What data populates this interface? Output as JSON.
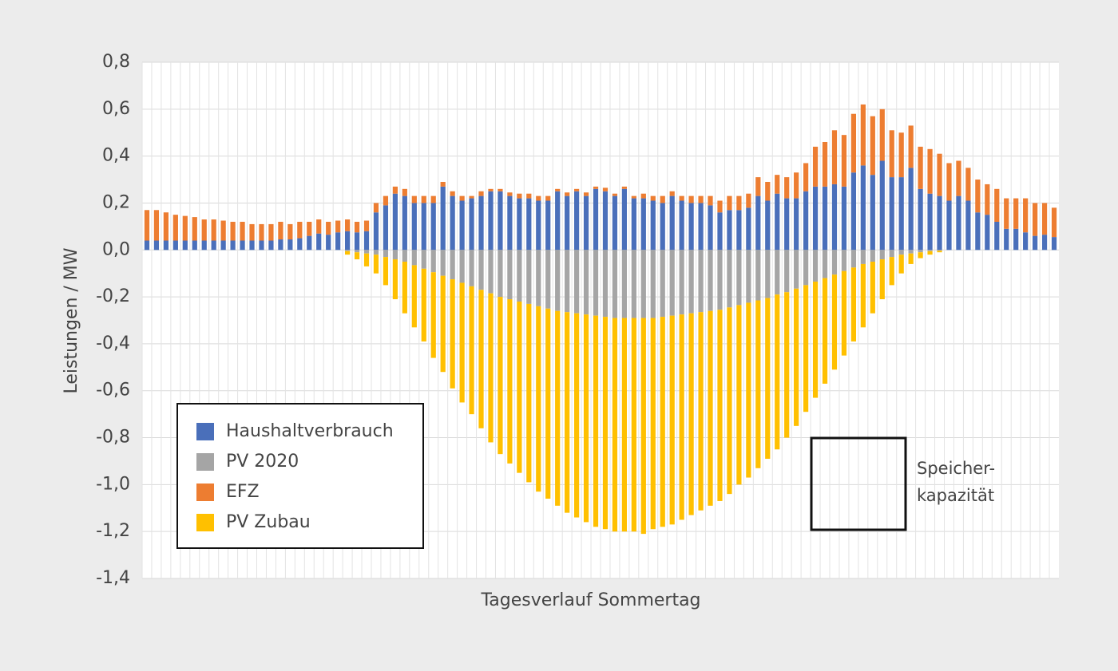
{
  "chart_data": {
    "type": "stacked_bar",
    "y_label": "Leistungen / MW",
    "x_label": "Tagesverlauf Sommertag",
    "annotation": [
      "Speicher-",
      "kapazität"
    ],
    "legend_position": "lower left",
    "grid": true,
    "ylim": [
      -1.4,
      0.8
    ],
    "yticks": [
      {
        "value": -1.4,
        "label": "-1,4"
      },
      {
        "value": -1.2,
        "label": "-1,2"
      },
      {
        "value": -1.0,
        "label": "-1,0"
      },
      {
        "value": -0.8,
        "label": "-0,8"
      },
      {
        "value": -0.6,
        "label": "-0,6"
      },
      {
        "value": -0.4,
        "label": "-0,4"
      },
      {
        "value": -0.2,
        "label": "-0,2"
      },
      {
        "value": 0,
        "label": "0,0"
      },
      {
        "value": 0.2,
        "label": "0,2"
      },
      {
        "value": 0.4,
        "label": "0,4"
      },
      {
        "value": 0.6,
        "label": "0,6"
      },
      {
        "value": 0.8,
        "label": "0,8"
      }
    ],
    "categories": [
      null,
      null,
      null,
      null,
      null,
      null,
      null,
      null,
      null,
      null,
      null,
      null,
      null,
      null,
      null,
      null,
      null,
      null,
      null,
      null,
      null,
      null,
      null,
      null,
      null,
      null,
      null,
      null,
      null,
      null,
      null,
      null,
      null,
      null,
      null,
      null,
      null,
      null,
      null,
      null,
      null,
      null,
      null,
      null,
      null,
      null,
      null,
      null,
      null,
      null,
      null,
      null,
      null,
      null,
      null,
      null,
      null,
      null,
      null,
      null,
      null,
      null,
      null,
      null,
      null,
      null,
      null,
      null,
      null,
      null,
      null,
      null,
      null,
      null,
      null,
      null,
      null,
      null,
      null,
      null,
      null,
      null,
      null,
      null,
      null,
      null,
      null,
      null,
      null,
      null,
      null,
      null,
      null,
      null,
      null,
      null
    ],
    "series": [
      {
        "name": "Haushaltverbrauch",
        "color": "#4a6fba",
        "values": [
          0.04,
          0.04,
          0.04,
          0.04,
          0.04,
          0.04,
          0.04,
          0.04,
          0.04,
          0.04,
          0.04,
          0.04,
          0.04,
          0.04,
          0.045,
          0.045,
          0.05,
          0.06,
          0.07,
          0.065,
          0.075,
          0.08,
          0.075,
          0.08,
          0.16,
          0.19,
          0.24,
          0.23,
          0.2,
          0.2,
          0.2,
          0.27,
          0.23,
          0.21,
          0.22,
          0.23,
          0.25,
          0.25,
          0.23,
          0.22,
          0.22,
          0.21,
          0.21,
          0.25,
          0.23,
          0.25,
          0.23,
          0.26,
          0.25,
          0.23,
          0.26,
          0.22,
          0.22,
          0.21,
          0.2,
          0.23,
          0.21,
          0.2,
          0.2,
          0.19,
          0.16,
          0.17,
          0.17,
          0.18,
          0.23,
          0.21,
          0.24,
          0.22,
          0.22,
          0.25,
          0.27,
          0.27,
          0.28,
          0.27,
          0.33,
          0.36,
          0.32,
          0.38,
          0.31,
          0.31,
          0.35,
          0.26,
          0.24,
          0.23,
          0.21,
          0.23,
          0.21,
          0.16,
          0.15,
          0.12,
          0.09,
          0.09,
          0.075,
          0.06,
          0.065,
          0.055
        ]
      },
      {
        "name": "PV 2020",
        "color": "#a5a5a5",
        "values": [
          0,
          0,
          0,
          0,
          0,
          0,
          0,
          0,
          0,
          0,
          0,
          0,
          0,
          0,
          0,
          0,
          0,
          0,
          0,
          0,
          0,
          -0.005,
          -0.01,
          -0.015,
          -0.02,
          -0.03,
          -0.04,
          -0.05,
          -0.065,
          -0.08,
          -0.095,
          -0.11,
          -0.125,
          -0.14,
          -0.155,
          -0.17,
          -0.185,
          -0.2,
          -0.21,
          -0.22,
          -0.23,
          -0.24,
          -0.25,
          -0.26,
          -0.265,
          -0.27,
          -0.275,
          -0.28,
          -0.285,
          -0.29,
          -0.29,
          -0.29,
          -0.29,
          -0.29,
          -0.285,
          -0.28,
          -0.275,
          -0.27,
          -0.265,
          -0.26,
          -0.255,
          -0.245,
          -0.235,
          -0.225,
          -0.215,
          -0.205,
          -0.19,
          -0.18,
          -0.165,
          -0.15,
          -0.135,
          -0.12,
          -0.105,
          -0.09,
          -0.075,
          -0.06,
          -0.05,
          -0.04,
          -0.03,
          -0.02,
          -0.015,
          -0.01,
          -0.005,
          -0.003,
          0,
          0,
          0,
          0,
          0,
          0,
          0,
          0,
          0,
          0,
          0,
          0
        ]
      },
      {
        "name": "EFZ",
        "color": "#ed7d31",
        "values": [
          0.13,
          0.13,
          0.12,
          0.11,
          0.105,
          0.1,
          0.09,
          0.09,
          0.085,
          0.08,
          0.08,
          0.07,
          0.07,
          0.07,
          0.075,
          0.065,
          0.07,
          0.06,
          0.06,
          0.055,
          0.05,
          0.05,
          0.045,
          0.045,
          0.04,
          0.04,
          0.03,
          0.03,
          0.03,
          0.03,
          0.03,
          0.02,
          0.02,
          0.02,
          0.01,
          0.02,
          0.01,
          0.01,
          0.015,
          0.02,
          0.02,
          0.02,
          0.02,
          0.01,
          0.015,
          0.01,
          0.015,
          0.01,
          0.015,
          0.01,
          0.01,
          0.01,
          0.02,
          0.02,
          0.03,
          0.02,
          0.02,
          0.03,
          0.03,
          0.04,
          0.05,
          0.06,
          0.06,
          0.06,
          0.08,
          0.08,
          0.08,
          0.09,
          0.11,
          0.12,
          0.17,
          0.19,
          0.23,
          0.22,
          0.25,
          0.26,
          0.25,
          0.22,
          0.2,
          0.19,
          0.18,
          0.18,
          0.19,
          0.18,
          0.16,
          0.15,
          0.14,
          0.14,
          0.13,
          0.14,
          0.13,
          0.13,
          0.145,
          0.14,
          0.135,
          0.125
        ]
      },
      {
        "name": "PV Zubau",
        "color": "#ffc000",
        "values": [
          0,
          0,
          0,
          0,
          0,
          0,
          0,
          0,
          0,
          0,
          0,
          0,
          0,
          0,
          0,
          0,
          0,
          0,
          0,
          0,
          0,
          -0.015,
          -0.03,
          -0.055,
          -0.08,
          -0.12,
          -0.17,
          -0.22,
          -0.265,
          -0.31,
          -0.365,
          -0.41,
          -0.465,
          -0.51,
          -0.545,
          -0.59,
          -0.635,
          -0.67,
          -0.7,
          -0.73,
          -0.76,
          -0.79,
          -0.81,
          -0.83,
          -0.855,
          -0.87,
          -0.885,
          -0.9,
          -0.905,
          -0.91,
          -0.91,
          -0.91,
          -0.92,
          -0.9,
          -0.895,
          -0.89,
          -0.875,
          -0.86,
          -0.845,
          -0.83,
          -0.815,
          -0.795,
          -0.765,
          -0.745,
          -0.715,
          -0.685,
          -0.66,
          -0.62,
          -0.585,
          -0.54,
          -0.495,
          -0.45,
          -0.405,
          -0.36,
          -0.315,
          -0.27,
          -0.22,
          -0.17,
          -0.12,
          -0.08,
          -0.045,
          -0.025,
          -0.015,
          -0.007,
          0,
          0,
          0,
          0,
          0,
          0,
          0,
          0,
          0,
          0,
          0,
          0
        ]
      }
    ]
  }
}
